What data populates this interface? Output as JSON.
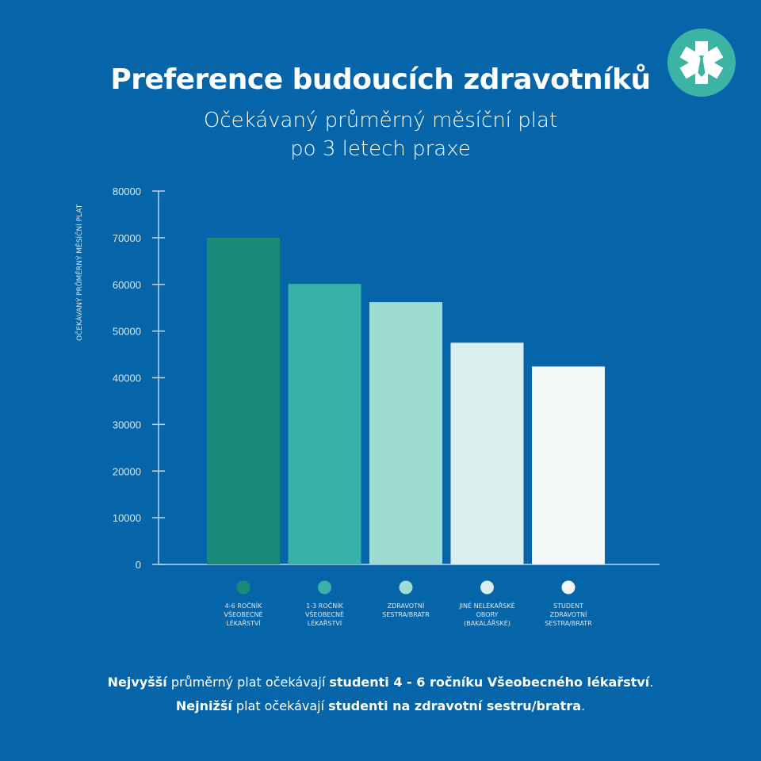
{
  "header": {
    "title": "Preference budoucích zdravotníků"
  },
  "logo": {
    "icon": "star-of-life-with-tie-icon",
    "color": "#3db3a6"
  },
  "chart_data": {
    "type": "bar",
    "title": "Očekávaný průměrný měsíční plat",
    "subtitle": "po 3 letech praxe",
    "ylabel": "OČEKÁVANÝ PRŮMĚRNÝ MĚSÍČNÍ PLAT",
    "xlabel": "",
    "ylim": [
      0,
      80000
    ],
    "yticks": [
      "0",
      "10000",
      "20000",
      "30000",
      "40000",
      "50000",
      "60000",
      "70000",
      "80000"
    ],
    "grid": false,
    "legend_position": "bottom",
    "categories": [
      [
        "4-6 ROČNÍK",
        "VŠEOBECNÉ",
        "LÉKAŘSTVÍ"
      ],
      [
        "1-3 ROČNÍK",
        "VŠEOBECNÉ",
        "LÉKAŘSTVÍ"
      ],
      [
        "ZDRAVOTNÍ",
        "SESTRA/BRATR"
      ],
      [
        "JINÉ NELÉKAŘSKÉ",
        "OBORY",
        "(BAKALÁŘSKÉ)"
      ],
      [
        "STUDENT",
        "ZDRAVOTNÍ",
        "SESTRA/BRATR"
      ]
    ],
    "values": [
      70000,
      60100,
      56200,
      47500,
      42400
    ],
    "colors": [
      "#1a8a78",
      "#38b2a8",
      "#9edbd3",
      "#daeeed",
      "#f4f7f8"
    ]
  },
  "footer": {
    "line1": [
      {
        "t": "Nejvyšší",
        "b": true
      },
      {
        "t": " průměrný plat očekávají ",
        "b": false
      },
      {
        "t": "studenti 4 - 6 ročníku Všeobecného lékařství",
        "b": true
      },
      {
        "t": ".",
        "b": false
      }
    ],
    "line2": [
      {
        "t": "Nejnižší",
        "b": true
      },
      {
        "t": " plat očekávají ",
        "b": false
      },
      {
        "t": "studenti na zdravotní sestru/bratra",
        "b": true
      },
      {
        "t": ".",
        "b": false
      }
    ]
  }
}
